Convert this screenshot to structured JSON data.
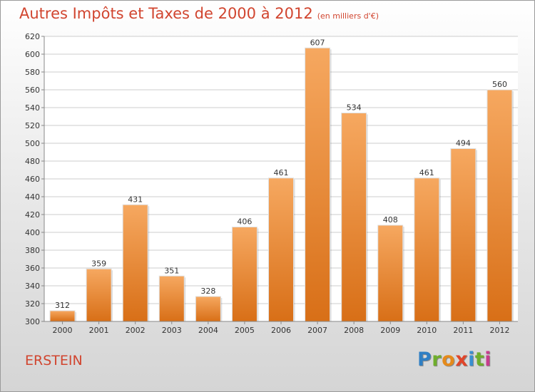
{
  "header": {
    "title": "Autres Impôts et Taxes de 2000 à 2012",
    "unit": "(en milliers d'€)"
  },
  "footer": {
    "place": "ERSTEIN",
    "logo_letters": [
      "P",
      "r",
      "o",
      "x",
      "i",
      "t",
      "i"
    ],
    "logo_colors": [
      "#2f7fc4",
      "#6fae2c",
      "#e58a1a",
      "#e0452a",
      "#3a8fd0",
      "#6fae2c",
      "#c73c8d"
    ]
  },
  "colors": {
    "bar_top": "#f6a860",
    "bar_bottom": "#d86f17",
    "title": "#d1452f",
    "grid": "#cccccc"
  },
  "chart_data": {
    "type": "bar",
    "title": "Autres Impôts et Taxes de 2000 à 2012",
    "subtitle": "(en milliers d'€)",
    "categories": [
      "2000",
      "2001",
      "2002",
      "2003",
      "2004",
      "2005",
      "2006",
      "2007",
      "2008",
      "2009",
      "2010",
      "2011",
      "2012"
    ],
    "values": [
      312,
      359,
      431,
      351,
      328,
      406,
      461,
      607,
      534,
      408,
      461,
      494,
      560
    ],
    "ylim": [
      300,
      620
    ],
    "yticks": [
      300,
      320,
      340,
      360,
      380,
      400,
      420,
      440,
      460,
      480,
      500,
      520,
      540,
      560,
      580,
      600,
      620
    ],
    "grid": true,
    "legend": "none"
  }
}
